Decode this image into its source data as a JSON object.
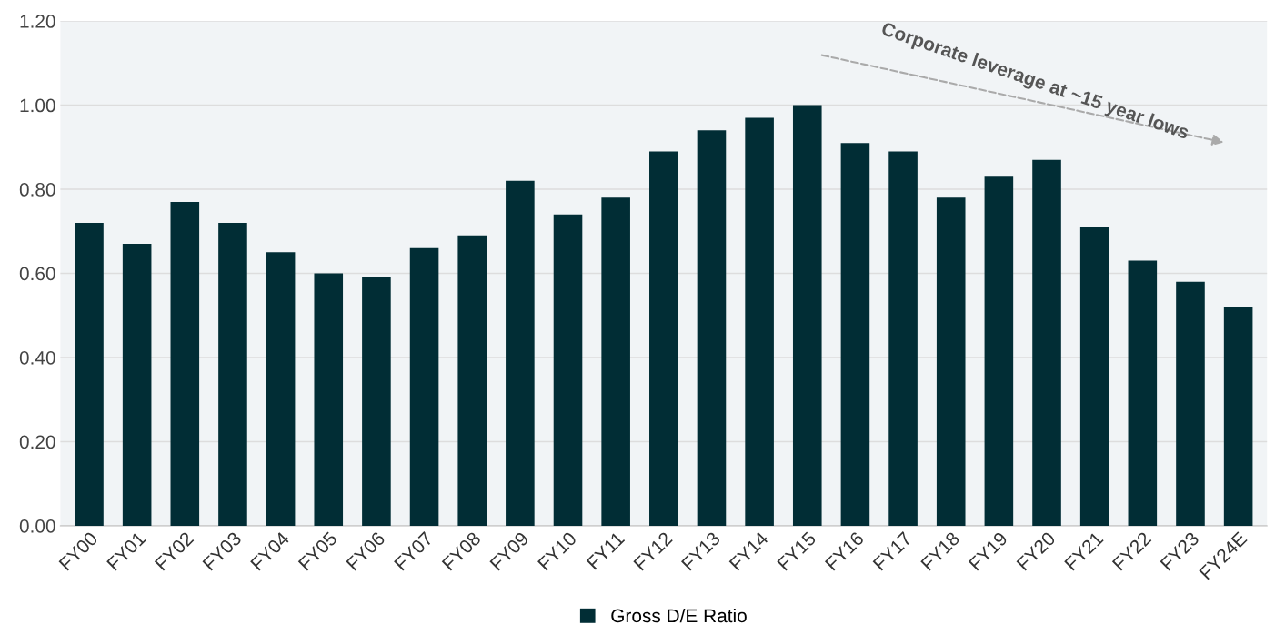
{
  "chart_data": {
    "type": "bar",
    "categories": [
      "FY00",
      "FY01",
      "FY02",
      "FY03",
      "FY04",
      "FY05",
      "FY06",
      "FY07",
      "FY08",
      "FY09",
      "FY10",
      "FY11",
      "FY12",
      "FY13",
      "FY14",
      "FY15",
      "FY16",
      "FY17",
      "FY18",
      "FY19",
      "FY20",
      "FY21",
      "FY22",
      "FY23",
      "FY24E"
    ],
    "series": [
      {
        "name": "Gross D/E Ratio",
        "color": "#012d35",
        "values": [
          0.72,
          0.67,
          0.77,
          0.72,
          0.65,
          0.6,
          0.59,
          0.66,
          0.69,
          0.82,
          0.74,
          0.78,
          0.89,
          0.94,
          0.97,
          1.0,
          0.91,
          0.89,
          0.78,
          0.83,
          0.87,
          0.71,
          0.63,
          0.58,
          0.52
        ]
      }
    ],
    "ylim": [
      0,
      1.2
    ],
    "yticks": [
      {
        "value": 0,
        "label": "0.00"
      },
      {
        "value": 0.2,
        "label": "0.20"
      },
      {
        "value": 0.4,
        "label": "0.40"
      },
      {
        "value": 0.6,
        "label": "0.60"
      },
      {
        "value": 0.8,
        "label": "0.80"
      },
      {
        "value": 1.0,
        "label": "1.00"
      },
      {
        "value": 1.2,
        "label": "1.20"
      }
    ],
    "grid": "y",
    "legend": "bottom",
    "annotations": [
      "Corporate leverage at ~15 year lows"
    ]
  }
}
